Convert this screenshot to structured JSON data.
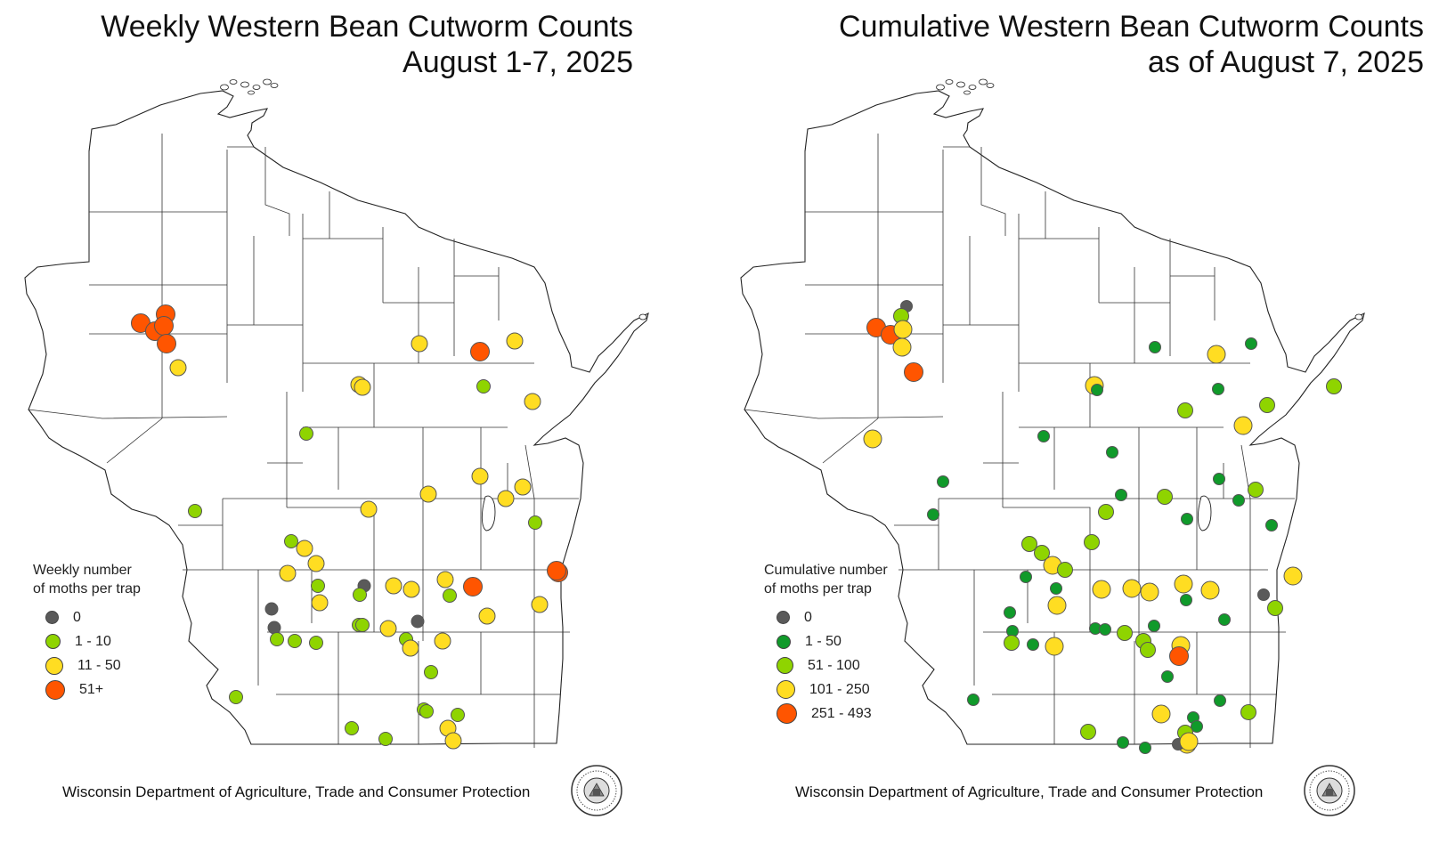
{
  "weekly": {
    "title_line1": "Weekly Western Bean Cutworm Counts",
    "title_line2": "August 1-7, 2025",
    "legend": {
      "title_line1": "Weekly number",
      "title_line2": "of moths per trap",
      "classes": [
        {
          "label": "0",
          "color": "#5a5a5a"
        },
        {
          "label": "1 - 10",
          "color": "#8fd400"
        },
        {
          "label": "11 - 50",
          "color": "#ffdd22"
        },
        {
          "label": "51+",
          "color": "#ff5500"
        }
      ]
    },
    "footer": "Wisconsin Department of Agriculture, Trade and Consumer Protection"
  },
  "cumulative": {
    "title_line1": "Cumulative Western Bean Cutworm Counts",
    "title_line2": "as of August 7, 2025",
    "legend": {
      "title_line1": "Cumulative number",
      "title_line2": "of moths per trap",
      "classes": [
        {
          "label": "0",
          "color": "#5a5a5a"
        },
        {
          "label": "1 - 50",
          "color": "#109a2a"
        },
        {
          "label": "51 - 100",
          "color": "#8fd400"
        },
        {
          "label": "101 - 250",
          "color": "#ffdd22"
        },
        {
          "label": "251 - 493",
          "color": "#ff5500"
        }
      ]
    },
    "footer": "Wisconsin Department of Agriculture, Trade and Consumer Protection"
  }
}
